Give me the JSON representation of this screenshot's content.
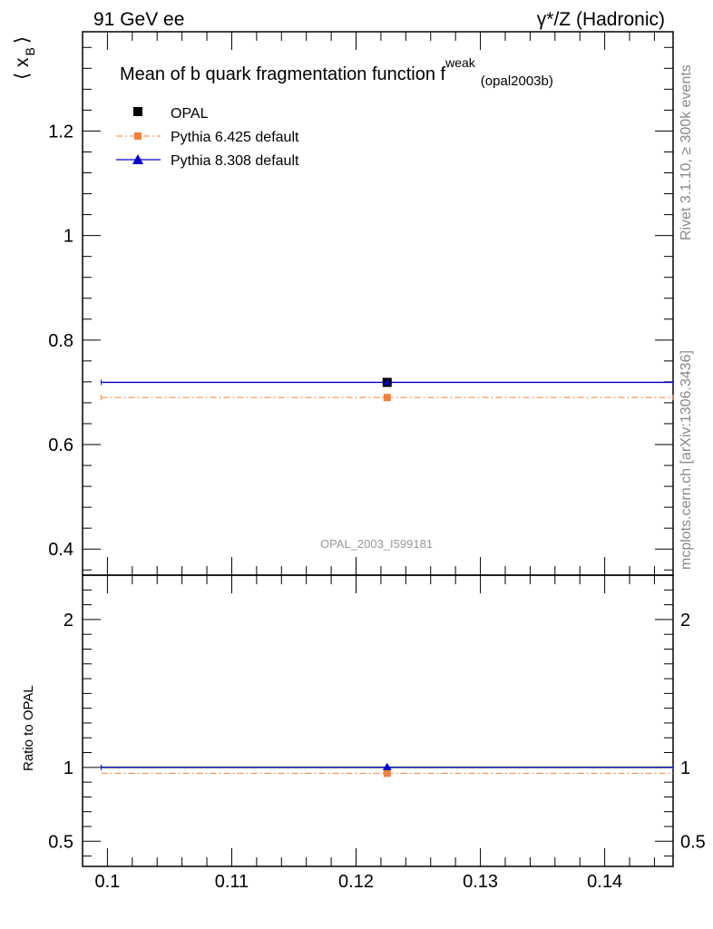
{
  "header": {
    "left": "91 GeV ee",
    "right": "γ*/Z (Hadronic)"
  },
  "side_notes": {
    "rivet": "Rivet 3.1.10, ≥ 300k events",
    "mcplots": "mcplots.cern.ch [arXiv:1306.3436]"
  },
  "chart_data": [
    {
      "type": "line",
      "title_main": "Mean of b quark fragmentation function f",
      "title_sup": "weak",
      "title_sub": "(opal2003b)",
      "watermark": "OPAL_2003_I599181",
      "ylabel_main": "⟨ x",
      "ylabel_sub": "B",
      "ylabel_end": "⟩",
      "xlim": [
        0.098,
        0.1455
      ],
      "ylim": [
        0.35,
        1.39
      ],
      "y_ticks": [
        0.4,
        0.6,
        0.8,
        1.0,
        1.2
      ],
      "y_tick_labels": [
        "0.4",
        "0.6",
        "0.8",
        "1",
        "1.2"
      ],
      "legend_position": "top-left",
      "series": [
        {
          "name": "OPAL",
          "style": "marker",
          "color": "#000000",
          "x": 0.1225,
          "y": 0.719,
          "xerr": [
            0.0995,
            0.1455
          ],
          "yerr": 0.006
        },
        {
          "name": "Pythia 6.425 default",
          "style": "dashdot",
          "color": "#f0803a",
          "x": 0.1225,
          "y": 0.69,
          "xrange": [
            0.0995,
            0.1455
          ]
        },
        {
          "name": "Pythia 8.308 default",
          "style": "solid",
          "color": "#0000cc",
          "x": 0.1225,
          "y": 0.719,
          "xrange": [
            0.0995,
            0.1455
          ]
        }
      ]
    },
    {
      "type": "line",
      "ylabel": "Ratio to OPAL",
      "xlim": [
        0.098,
        0.1455
      ],
      "ylim": [
        0.33,
        2.3
      ],
      "y_ticks": [
        0.5,
        1.0,
        2.0
      ],
      "y_tick_labels": [
        "0.5",
        "1",
        "2"
      ],
      "x_ticks": [
        0.1,
        0.11,
        0.12,
        0.13,
        0.14
      ],
      "x_tick_labels": [
        "0.1",
        "0.11",
        "0.12",
        "0.13",
        "0.14"
      ],
      "band": {
        "color": "#c6e88a",
        "ylow": 0.992,
        "yhigh": 1.008
      },
      "series": [
        {
          "name": "OPAL",
          "color": "#000000",
          "y": 1.0
        },
        {
          "name": "Pythia 6.425 default",
          "color": "#f0803a",
          "y": 0.96
        },
        {
          "name": "Pythia 8.308 default",
          "color": "#0000cc",
          "y": 1.0
        }
      ]
    }
  ]
}
